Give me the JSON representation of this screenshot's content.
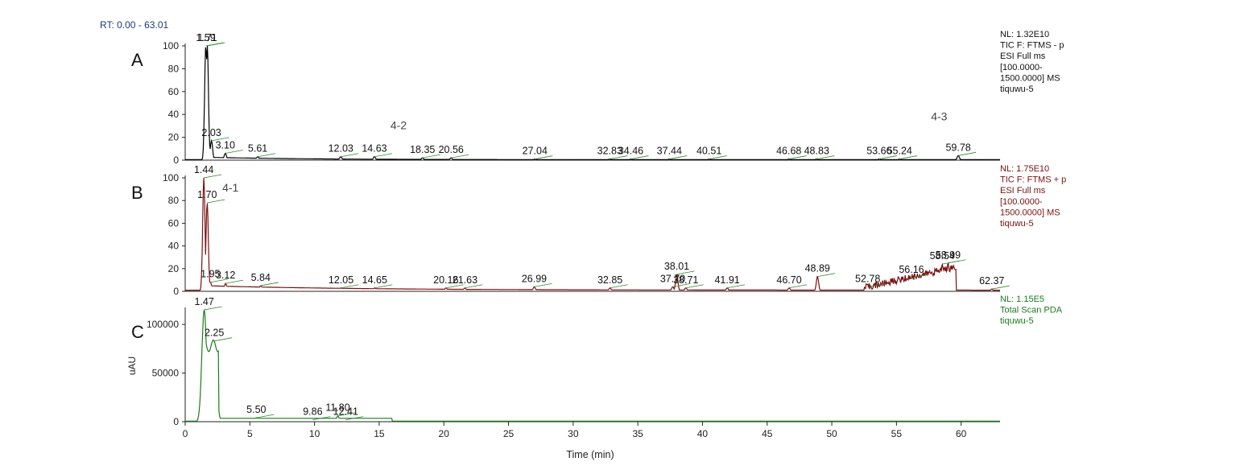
{
  "rt_range_label": "RT: 0.00 - 63.01",
  "x_axis": {
    "label": "Time (min)",
    "min": 0,
    "max": 63.01,
    "ticks": [
      0,
      5,
      10,
      15,
      20,
      25,
      30,
      35,
      40,
      45,
      50,
      55,
      60
    ]
  },
  "colors": {
    "panel_a": "#000000",
    "panel_b": "#7a1010",
    "panel_c": "#1c7a1c",
    "peak_leader": "#2e8b2e",
    "axis": "#222222",
    "rt_label": "#1f3a7a"
  },
  "chart_data": [
    {
      "type": "line",
      "panel_letter": "A",
      "ylabel": "",
      "ylim": [
        0,
        100
      ],
      "yticks": [
        0,
        20,
        40,
        60,
        80,
        100
      ],
      "info_lines": [
        "NL: 1.32E10",
        "TIC F: FTMS - p",
        "ESI Full ms",
        "[100.0000-",
        "1500.0000]  MS",
        "tiquwu-5"
      ],
      "annotations": [
        {
          "text": "4-2",
          "x": 16.5,
          "y": 27
        },
        {
          "text": "4-3",
          "x": 58.3,
          "y": 35
        }
      ],
      "peaks": [
        {
          "label": "1.59",
          "x": 1.59,
          "y": 100
        },
        {
          "label": "1.71",
          "x": 1.71,
          "y": 100
        },
        {
          "label": "2.03",
          "x": 2.03,
          "y": 17
        },
        {
          "label": "3.10",
          "x": 3.1,
          "y": 6
        },
        {
          "label": "5.61",
          "x": 5.61,
          "y": 3
        },
        {
          "label": "12.03",
          "x": 12.03,
          "y": 3
        },
        {
          "label": "14.63",
          "x": 14.63,
          "y": 3
        },
        {
          "label": "18.35",
          "x": 18.35,
          "y": 2
        },
        {
          "label": "20.56",
          "x": 20.56,
          "y": 2
        },
        {
          "label": "27.04",
          "x": 27.04,
          "y": 1
        },
        {
          "label": "32.83",
          "x": 32.83,
          "y": 1
        },
        {
          "label": "34.46",
          "x": 34.46,
          "y": 1
        },
        {
          "label": "37.44",
          "x": 37.44,
          "y": 1
        },
        {
          "label": "40.51",
          "x": 40.51,
          "y": 1
        },
        {
          "label": "46.68",
          "x": 46.68,
          "y": 1
        },
        {
          "label": "48.83",
          "x": 48.83,
          "y": 1
        },
        {
          "label": "53.66",
          "x": 53.66,
          "y": 1
        },
        {
          "label": "55.24",
          "x": 55.24,
          "y": 1
        },
        {
          "label": "59.78",
          "x": 59.78,
          "y": 4
        }
      ]
    },
    {
      "type": "line",
      "panel_letter": "B",
      "ylabel": "",
      "ylim": [
        0,
        100
      ],
      "yticks": [
        0,
        20,
        40,
        60,
        80,
        100
      ],
      "info_lines": [
        "NL: 1.75E10",
        "TIC F: FTMS + p",
        "ESI Full ms",
        "[100.0000-",
        "1500.0000]  MS",
        "tiquwu-5"
      ],
      "annotations": [
        {
          "text": "4-1",
          "x": 3.5,
          "y": 88
        }
      ],
      "peaks": [
        {
          "label": "1.44",
          "x": 1.44,
          "y": 100
        },
        {
          "label": "1.70",
          "x": 1.7,
          "y": 78
        },
        {
          "label": "1.95",
          "x": 1.95,
          "y": 8
        },
        {
          "label": "3.12",
          "x": 3.12,
          "y": 7
        },
        {
          "label": "5.84",
          "x": 5.84,
          "y": 5
        },
        {
          "label": "12.05",
          "x": 12.05,
          "y": 3
        },
        {
          "label": "14.65",
          "x": 14.65,
          "y": 3
        },
        {
          "label": "20.16",
          "x": 20.16,
          "y": 3
        },
        {
          "label": "21.63",
          "x": 21.63,
          "y": 3
        },
        {
          "label": "26.99",
          "x": 26.99,
          "y": 4
        },
        {
          "label": "32.85",
          "x": 32.85,
          "y": 3
        },
        {
          "label": "37.70",
          "x": 37.7,
          "y": 4
        },
        {
          "label": "38.01",
          "x": 38.01,
          "y": 15
        },
        {
          "label": "38.71",
          "x": 38.71,
          "y": 3
        },
        {
          "label": "41.91",
          "x": 41.91,
          "y": 3
        },
        {
          "label": "46.70",
          "x": 46.7,
          "y": 3
        },
        {
          "label": "48.89",
          "x": 48.89,
          "y": 13
        },
        {
          "label": "52.78",
          "x": 52.78,
          "y": 4
        },
        {
          "label": "56.16",
          "x": 56.16,
          "y": 12
        },
        {
          "label": "58.54",
          "x": 58.54,
          "y": 24
        },
        {
          "label": "58.99",
          "x": 58.99,
          "y": 25
        },
        {
          "label": "62.37",
          "x": 62.37,
          "y": 2
        }
      ]
    },
    {
      "type": "line",
      "panel_letter": "C",
      "ylabel": "uAU",
      "ylim": [
        0,
        115000
      ],
      "yticks": [
        0,
        50000,
        100000
      ],
      "info_lines": [
        "NL: 1.15E5",
        "Total Scan  PDA",
        "tiquwu-5"
      ],
      "annotations": [],
      "peaks": [
        {
          "label": "1.47",
          "x": 1.47,
          "y": 115000
        },
        {
          "label": "2.25",
          "x": 2.25,
          "y": 83000
        },
        {
          "label": "5.50",
          "x": 5.5,
          "y": 4000
        },
        {
          "label": "9.86",
          "x": 9.86,
          "y": 2000
        },
        {
          "label": "11.80",
          "x": 11.8,
          "y": 6000
        },
        {
          "label": "12.41",
          "x": 12.41,
          "y": 2000
        }
      ]
    }
  ]
}
